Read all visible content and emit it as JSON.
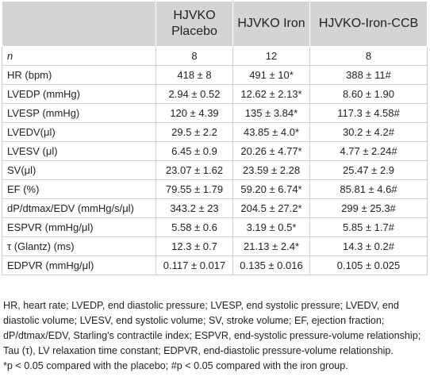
{
  "table": {
    "header": [
      "HJVKO Placebo",
      "HJVKO Iron",
      "HJVKO-Iron-CCB"
    ],
    "rows": [
      [
        "n",
        "8",
        "12",
        "8"
      ],
      [
        "HR (bpm)",
        "418 ± 8",
        "491 ± 10*",
        "388 ± 11#"
      ],
      [
        "LVEDP (mmHg)",
        "2.94 ± 0.52",
        "12.62 ± 2.13*",
        "8.60 ± 1.90"
      ],
      [
        "LVESP (mmHg)",
        "120 ± 4.39",
        "135 ± 3.84*",
        "117.3 ± 4.58#"
      ],
      [
        "LVEDV(μl)",
        "29.5 ± 2.2",
        "43.85 ± 4.0*",
        "30.2 ± 4.2#"
      ],
      [
        "LVESV (μl)",
        "6.45 ± 0.9",
        "20.26 ± 4.77*",
        "4.77 ± 2.24#"
      ],
      [
        "SV(μl)",
        "23.07 ± 1.62",
        "23.59 ± 2.28",
        "25.47 ± 2.9"
      ],
      [
        "EF (%)",
        "79.55 ± 1.79",
        "59.20 ± 6.74*",
        "85.81 ± 4.6#"
      ],
      [
        "dP/dtmax/EDV (mmHg/s/μl)",
        "343.2 ± 23",
        "204.5 ± 27.2*",
        "299 ± 25.3#"
      ],
      [
        "ESPVR (mmHg/μl)",
        "5.58 ± 0.6",
        "3.19 ± 0.5*",
        "5.85 ± 1.7#"
      ],
      [
        "τ (Glantz) (ms)",
        "12.3 ± 0.7",
        "21.13 ± 2.4*",
        "14.3 ± 0.2#"
      ],
      [
        "EDPVR (mmHg/μl)",
        "0.117 ± 0.017",
        "0.135 ± 0.016",
        "0.105 ± 0.025"
      ]
    ],
    "footnotes": [
      "HR, heart rate; LVEDP, end diastolic pressure; LVESP, end systolic pressure; LVEDV, end diastolic volume; LVESV, end systolic volume; SV, stroke volume; EF, ejection fraction; dP/dtmax/EDV, Starling's contractile index; ESPVR, end-systolic pressure-volume relationship; Tau (τ), LV relaxation time constant; EDPVR, end-diastolic pressure-volume relationship.",
      "*p < 0.05 compared with the placebo; #p < 0.05 compared with the iron group."
    ]
  }
}
